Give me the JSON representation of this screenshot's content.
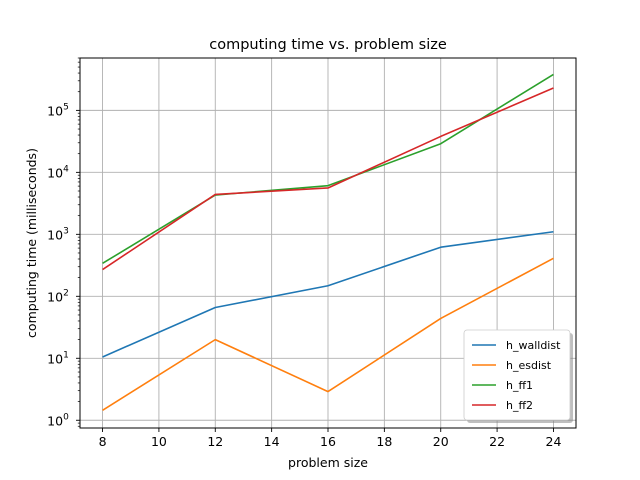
{
  "chart_data": {
    "type": "line",
    "title": "computing time vs. problem size",
    "xlabel": "problem size",
    "ylabel": "computing time (milliseconds)",
    "x": [
      8,
      12,
      16,
      20,
      24
    ],
    "xlim": [
      7.2,
      24.8
    ],
    "xticks": [
      8,
      10,
      12,
      14,
      16,
      18,
      20,
      22,
      24
    ],
    "yscale": "log",
    "ylim": [
      0.75,
      700000
    ],
    "ytick_exponents": [
      0,
      1,
      2,
      3,
      4,
      5
    ],
    "grid": true,
    "legend_position": "lower-right",
    "series": [
      {
        "name": "h_walldist",
        "color": "#1f77b4",
        "values": [
          10.5,
          66,
          148,
          620,
          1100
        ]
      },
      {
        "name": "h_esdist",
        "color": "#ff7f0e",
        "values": [
          1.45,
          20,
          2.9,
          44,
          410
        ]
      },
      {
        "name": "h_ff1",
        "color": "#2ca02c",
        "values": [
          340,
          4300,
          6100,
          29000,
          380000
        ]
      },
      {
        "name": "h_ff2",
        "color": "#d62728",
        "values": [
          270,
          4400,
          5600,
          38000,
          230000
        ]
      }
    ]
  }
}
